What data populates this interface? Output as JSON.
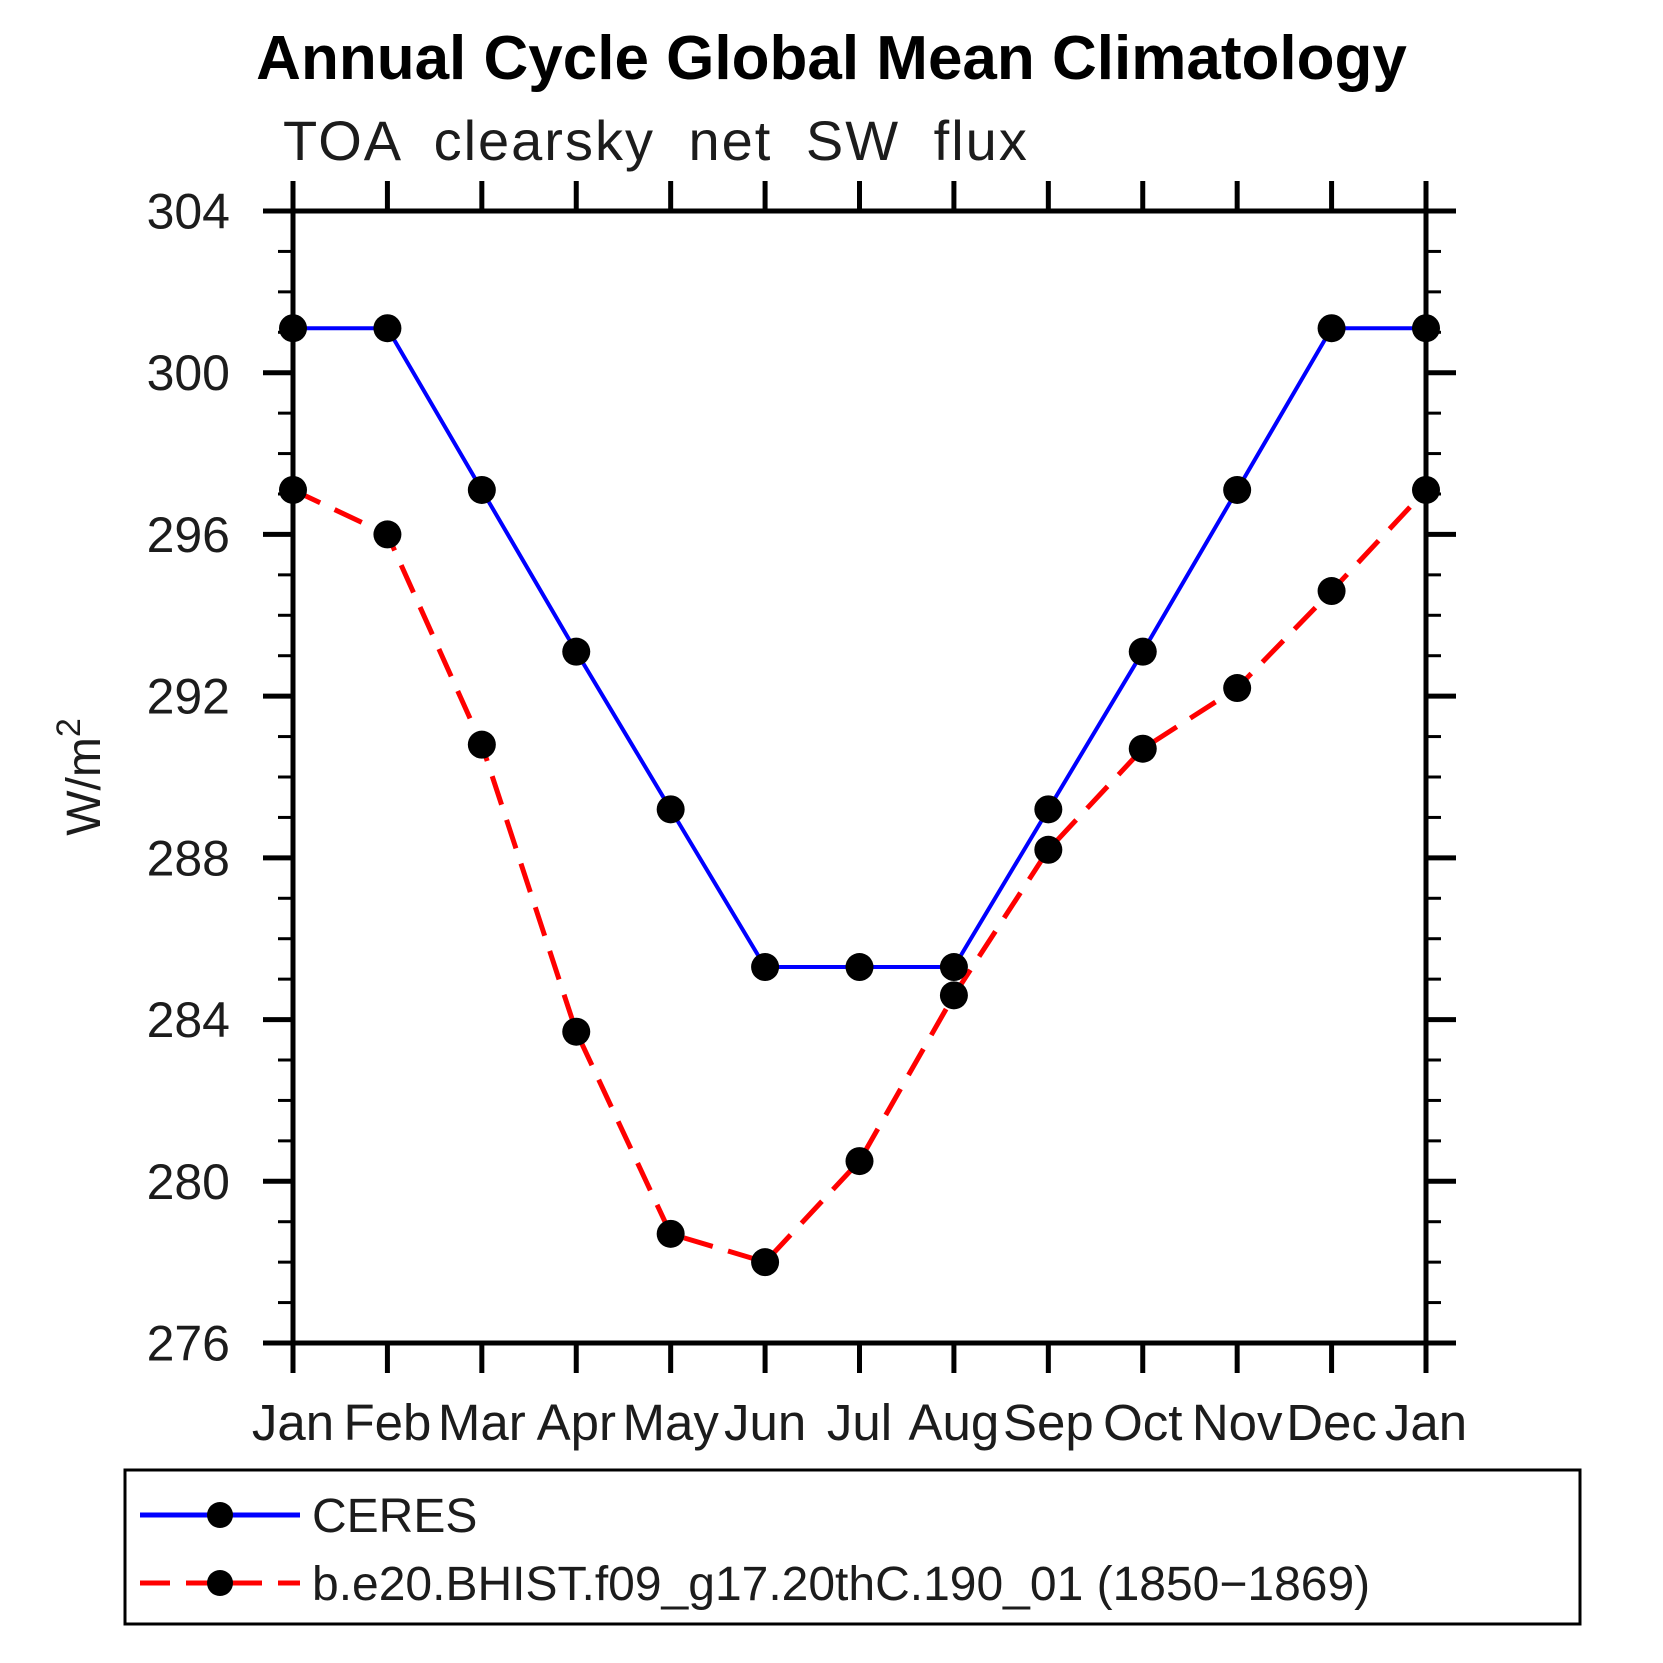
{
  "chart": {
    "title": "Annual Cycle Global Mean Climatology",
    "subtitle": "TOA clearsky net SW flux",
    "ylabel": {
      "base": "W/m",
      "sup": "2"
    }
  },
  "chart_data": {
    "type": "line",
    "categories": [
      "Jan",
      "Feb",
      "Mar",
      "Apr",
      "May",
      "Jun",
      "Jul",
      "Aug",
      "Sep",
      "Oct",
      "Nov",
      "Dec",
      "Jan"
    ],
    "series": [
      {
        "name": "CERES",
        "color": "#0000ff",
        "line_style": "solid",
        "line_width": 4,
        "values": [
          301.1,
          301.1,
          297.1,
          293.1,
          289.2,
          285.3,
          285.3,
          285.3,
          289.2,
          293.1,
          297.1,
          301.1,
          301.1
        ]
      },
      {
        "name": "b.e20.BHIST.f09_g17.20thC.190_01 (1850−1869)",
        "color": "#ff0000",
        "line_style": "dashed",
        "line_width": 5,
        "values": [
          297.1,
          296.0,
          290.8,
          283.7,
          278.7,
          278.0,
          280.5,
          284.6,
          288.2,
          290.7,
          292.2,
          294.6,
          297.1
        ]
      }
    ],
    "marker": {
      "shape": "circle",
      "color": "#000000",
      "radius": 14
    },
    "ylim": [
      276,
      304
    ],
    "y_major_step": 4,
    "y_minor_step": 1,
    "grid": false,
    "legend_position": "bottom",
    "axis_color": "#000000"
  }
}
